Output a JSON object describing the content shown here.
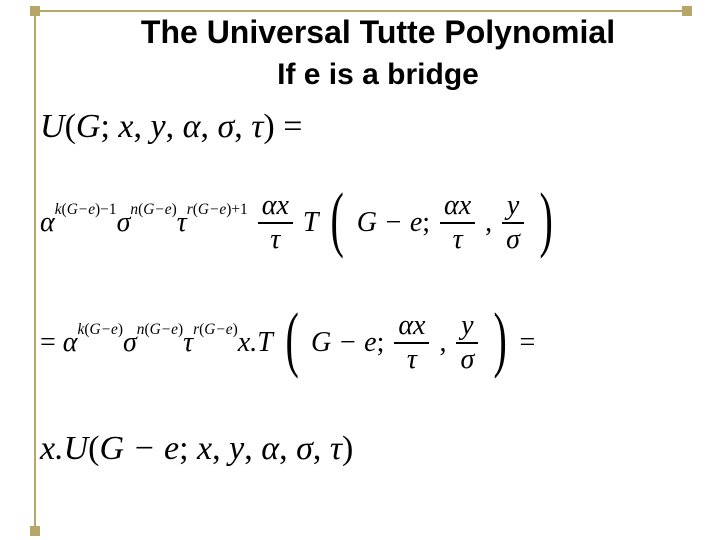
{
  "title": "The Universal Tutte Polynomial",
  "subtitle": "If e is a bridge",
  "colors": {
    "frame": "#b7a66a",
    "background": "#ffffff",
    "text": "#000000"
  },
  "fonts": {
    "title_family": "Arial",
    "title_size_pt": 32,
    "title_weight": "bold",
    "subtitle_size_pt": 30,
    "math_family": "Times New Roman",
    "math_style": "italic",
    "line1_size_pt": 34,
    "line2_size_pt": 28,
    "line3_size_pt": 28,
    "line4_size_pt": 34
  },
  "line1": {
    "U": "U",
    "lp": "(",
    "G": "G",
    "semi": ";",
    "sp1": " ",
    "x": "x",
    "c1": ",",
    "sp2": " ",
    "y": "y",
    "c2": ",",
    "sp3": " ",
    "alpha": "α",
    "c3": ",",
    "sp4": " ",
    "sigma": "σ",
    "c4": ",",
    "sp5": " ",
    "tau": "τ",
    "rp": ")",
    "eq": " ="
  },
  "line2": {
    "alpha1": "α",
    "exp1_k": "k",
    "exp1_lp": "(",
    "exp1_Gme": "G−e",
    "exp1_rp": ")",
    "exp1_m1": "−1",
    "sigma": "σ",
    "exp2_n": "n",
    "exp2_lp": "(",
    "exp2_Gme": "G−e",
    "exp2_rp": ")",
    "tau": "τ",
    "exp3_r": "r",
    "exp3_lp": "(",
    "exp3_Gme": "G−e",
    "exp3_rp": ")",
    "exp3_p1": "+1",
    "frac1_num": "αx",
    "frac1_den": "τ",
    "T": "T",
    "arg_Gme": "G − e",
    "arg_semi": ";",
    "frac2_num": "αx",
    "frac2_den": "τ",
    "comma": ",",
    "frac3_num": "y",
    "frac3_den": "σ"
  },
  "line3": {
    "eq": "= ",
    "alpha": "α",
    "exp1_k": "k",
    "exp1_lp": "(",
    "exp1_Gme": "G−e",
    "exp1_rp": ")",
    "sigma": "σ",
    "exp2_n": "n",
    "exp2_lp": "(",
    "exp2_Gme": "G−e",
    "exp2_rp": ")",
    "tau": "τ",
    "exp3_r": "r",
    "exp3_lp": "(",
    "exp3_Gme": "G−e",
    "exp3_rp": ")",
    "xdot": "x.",
    "T": "T",
    "arg_Gme": "G − e",
    "arg_semi": ";",
    "frac1_num": "αx",
    "frac1_den": "τ",
    "comma": ",",
    "frac2_num": "y",
    "frac2_den": "σ",
    "eq2": " ="
  },
  "line4": {
    "pre": "x.U",
    "lp": "(",
    "Gme": "G − e",
    "semi": ";",
    "sp1": " ",
    "x": "x",
    "c1": ",",
    "sp2": " ",
    "y": "y",
    "c2": ",",
    "sp3": " ",
    "alpha": "α",
    "c3": ",",
    "sp4": " ",
    "sigma": "σ",
    "c4": ",",
    "sp5": " ",
    "tau": "τ",
    "rp": ")"
  }
}
